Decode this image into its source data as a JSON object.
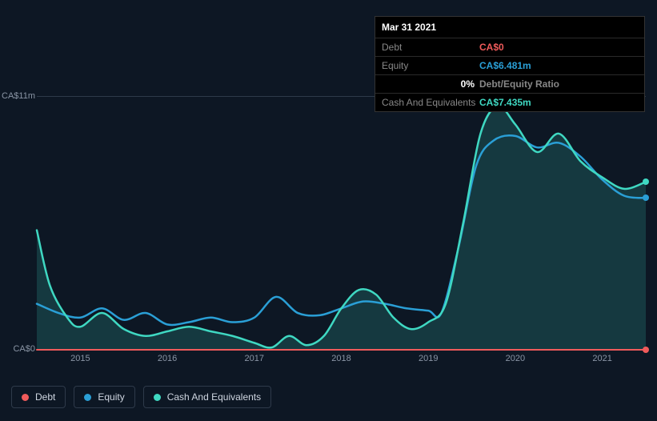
{
  "tooltip": {
    "date": "Mar 31 2021",
    "rows": [
      {
        "label": "Debt",
        "value": "CA$0",
        "cls": "tv-debt"
      },
      {
        "label": "Equity",
        "value": "CA$6.481m",
        "cls": "tv-equity"
      },
      {
        "label_right": "0%",
        "value": "Debt/Equity Ratio",
        "cls": "tv-ratio-lbl"
      },
      {
        "label": "Cash And Equivalents",
        "value": "CA$7.435m",
        "cls": "tv-cash"
      }
    ]
  },
  "chart": {
    "type": "line-area",
    "background": "#0d1724",
    "grid_color": "#2e3a4a",
    "y": {
      "min": 0,
      "max": 11,
      "ticks": [
        {
          "v": 11,
          "label": "CA$11m"
        },
        {
          "v": 0,
          "label": "CA$0"
        }
      ],
      "label_fontsize": 11,
      "label_color": "#8a95a5"
    },
    "x": {
      "start": 2014.5,
      "end": 2021.5,
      "ticks": [
        2015,
        2016,
        2017,
        2018,
        2019,
        2020,
        2021
      ],
      "label_fontsize": 11,
      "label_color": "#8a95a5"
    },
    "series": [
      {
        "name": "Debt",
        "color": "#f05b5b",
        "fill": false,
        "stroke_width": 2,
        "points": [
          [
            2014.5,
            0
          ],
          [
            2015,
            0
          ],
          [
            2016,
            0
          ],
          [
            2017,
            0
          ],
          [
            2018,
            0
          ],
          [
            2019,
            0
          ],
          [
            2020,
            0
          ],
          [
            2021,
            0
          ],
          [
            2021.5,
            0
          ]
        ],
        "end_marker": true
      },
      {
        "name": "Equity",
        "color": "#2a9fd6",
        "fill": false,
        "stroke_width": 2.5,
        "points": [
          [
            2014.5,
            2.0
          ],
          [
            2014.75,
            1.6
          ],
          [
            2015.0,
            1.4
          ],
          [
            2015.25,
            1.8
          ],
          [
            2015.5,
            1.3
          ],
          [
            2015.75,
            1.6
          ],
          [
            2016.0,
            1.1
          ],
          [
            2016.25,
            1.2
          ],
          [
            2016.5,
            1.4
          ],
          [
            2016.75,
            1.2
          ],
          [
            2017.0,
            1.4
          ],
          [
            2017.25,
            2.3
          ],
          [
            2017.5,
            1.6
          ],
          [
            2017.75,
            1.5
          ],
          [
            2018.0,
            1.8
          ],
          [
            2018.25,
            2.1
          ],
          [
            2018.5,
            2.0
          ],
          [
            2018.75,
            1.8
          ],
          [
            2019.0,
            1.7
          ],
          [
            2019.15,
            1.6
          ],
          [
            2019.35,
            4.5
          ],
          [
            2019.55,
            8.0
          ],
          [
            2019.75,
            9.1
          ],
          [
            2020.0,
            9.3
          ],
          [
            2020.25,
            8.8
          ],
          [
            2020.5,
            9.0
          ],
          [
            2020.75,
            8.4
          ],
          [
            2021.0,
            7.4
          ],
          [
            2021.25,
            6.7
          ],
          [
            2021.5,
            6.6
          ]
        ],
        "end_marker": true
      },
      {
        "name": "Cash And Equivalents",
        "color": "#3fd8c2",
        "fill": true,
        "fill_color": "rgba(63,216,194,0.18)",
        "stroke_width": 2.5,
        "points": [
          [
            2014.5,
            5.2
          ],
          [
            2014.65,
            2.8
          ],
          [
            2014.85,
            1.4
          ],
          [
            2015.0,
            1.0
          ],
          [
            2015.25,
            1.6
          ],
          [
            2015.5,
            0.9
          ],
          [
            2015.75,
            0.6
          ],
          [
            2016.0,
            0.8
          ],
          [
            2016.25,
            1.0
          ],
          [
            2016.5,
            0.8
          ],
          [
            2016.75,
            0.6
          ],
          [
            2017.0,
            0.3
          ],
          [
            2017.2,
            0.1
          ],
          [
            2017.4,
            0.6
          ],
          [
            2017.6,
            0.2
          ],
          [
            2017.8,
            0.6
          ],
          [
            2018.0,
            1.8
          ],
          [
            2018.2,
            2.6
          ],
          [
            2018.4,
            2.4
          ],
          [
            2018.6,
            1.4
          ],
          [
            2018.8,
            0.9
          ],
          [
            2019.0,
            1.2
          ],
          [
            2019.2,
            2.0
          ],
          [
            2019.4,
            5.5
          ],
          [
            2019.6,
            9.4
          ],
          [
            2019.8,
            10.6
          ],
          [
            2020.0,
            9.8
          ],
          [
            2020.25,
            8.6
          ],
          [
            2020.5,
            9.4
          ],
          [
            2020.75,
            8.2
          ],
          [
            2021.0,
            7.5
          ],
          [
            2021.25,
            7.0
          ],
          [
            2021.5,
            7.3
          ]
        ],
        "end_marker": true
      }
    ]
  },
  "legend": {
    "items": [
      {
        "label": "Debt",
        "color": "#f05b5b"
      },
      {
        "label": "Equity",
        "color": "#2a9fd6"
      },
      {
        "label": "Cash And Equivalents",
        "color": "#3fd8c2"
      }
    ],
    "border_color": "#2e3a4a",
    "fontsize": 12
  }
}
